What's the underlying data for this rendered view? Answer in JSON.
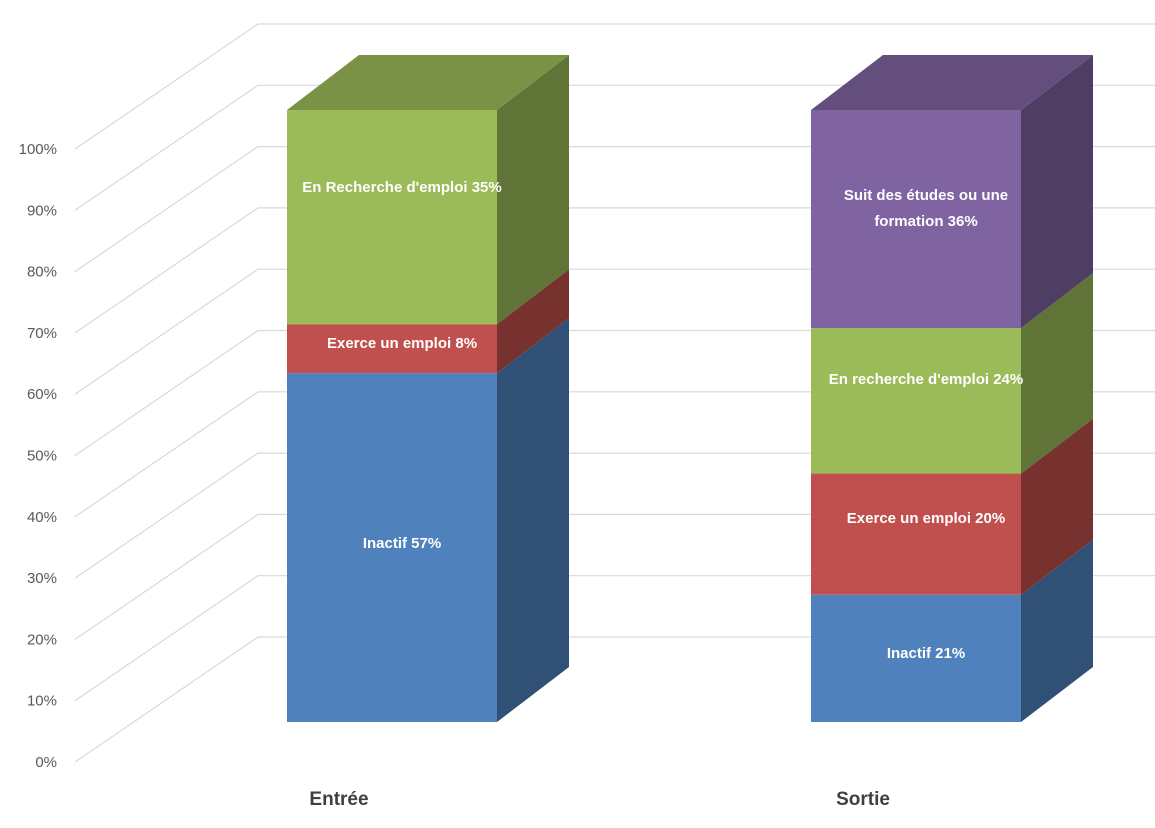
{
  "chart_data": {
    "type": "bar",
    "stacked": true,
    "three_d": true,
    "title": "",
    "xlabel": "",
    "ylabel": "",
    "ylim": [
      0,
      100
    ],
    "y_ticks": [
      "0%",
      "10%",
      "20%",
      "30%",
      "40%",
      "50%",
      "60%",
      "70%",
      "80%",
      "90%",
      "100%"
    ],
    "grid": true,
    "legend": "none",
    "categories": [
      "Entrée",
      "Sortie"
    ],
    "bars": [
      {
        "category": "Entrée",
        "segments": [
          {
            "value": 57,
            "label": "Inactif 57%",
            "color": "#4F81BD"
          },
          {
            "value": 8,
            "label": "Exerce un emploi 8%",
            "color": "#C0504D"
          },
          {
            "value": 35,
            "label": "En Recherche d'emploi 35%",
            "color": "#9BBB59"
          }
        ]
      },
      {
        "category": "Sortie",
        "segments": [
          {
            "value": 21,
            "label": "Inactif 21%",
            "color": "#4F81BD"
          },
          {
            "value": 20,
            "label": "Exerce un emploi 20%",
            "color": "#C0504D"
          },
          {
            "value": 24,
            "label": "En recherche d'emploi 24%",
            "color": "#9BBB59"
          },
          {
            "value": 36,
            "label": "Suit des études ou une formation  36%",
            "color": "#8064A2"
          }
        ]
      }
    ]
  }
}
